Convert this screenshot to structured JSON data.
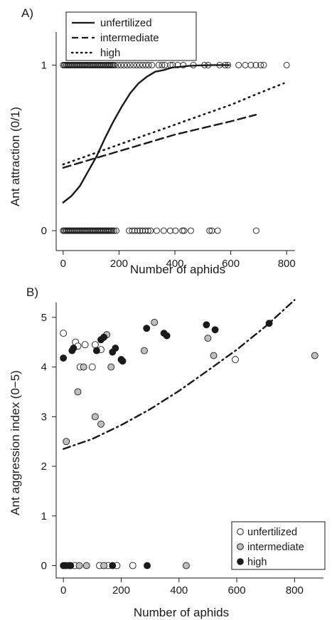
{
  "chart_data": [
    {
      "panel_label": "A)",
      "type": "scatter",
      "xlabel": "Number of aphids",
      "ylabel": "Ant attraction (0/1)",
      "xlim": [
        -25,
        830
      ],
      "ylim": [
        -0.12,
        1.35
      ],
      "x_ticks": [
        0,
        200,
        400,
        600,
        800
      ],
      "y_ticks": [
        0,
        1
      ],
      "legend": {
        "placement": "top-left",
        "entries": [
          {
            "label": "unfertilized",
            "style": "solid"
          },
          {
            "label": "intermediate",
            "style": "dashed"
          },
          {
            "label": "high",
            "style": "dotted"
          }
        ]
      },
      "points": {
        "y1_x": [
          0,
          4,
          8,
          12,
          16,
          20,
          24,
          28,
          32,
          36,
          40,
          44,
          48,
          52,
          56,
          60,
          64,
          68,
          72,
          76,
          80,
          84,
          88,
          92,
          96,
          100,
          104,
          108,
          112,
          116,
          120,
          124,
          128,
          132,
          136,
          140,
          144,
          148,
          152,
          156,
          160,
          164,
          168,
          172,
          176,
          180,
          185,
          196,
          207,
          218,
          229,
          240,
          252,
          263,
          274,
          285,
          296,
          306,
          318,
          342,
          354,
          364,
          384,
          392,
          410,
          430,
          466,
          506,
          519,
          560,
          580,
          590,
          628,
          652,
          672,
          690,
          707,
          718,
          800
        ],
        "y0_x": [
          0,
          4,
          8,
          12,
          16,
          20,
          24,
          28,
          32,
          36,
          40,
          44,
          48,
          52,
          56,
          60,
          64,
          68,
          72,
          76,
          80,
          84,
          88,
          92,
          96,
          100,
          104,
          108,
          112,
          116,
          120,
          124,
          128,
          132,
          136,
          140,
          144,
          148,
          152,
          156,
          160,
          164,
          168,
          172,
          176,
          182,
          190,
          236,
          247,
          256,
          266,
          275,
          284,
          294,
          304,
          313,
          335,
          360,
          383,
          402,
          427,
          433,
          457,
          524,
          532,
          553,
          691
        ]
      },
      "series": [
        {
          "name": "unfertilized",
          "style": "solid",
          "x": [
            0,
            30,
            60,
            90,
            120,
            150,
            180,
            210,
            240,
            270,
            300,
            330,
            360,
            390,
            420,
            450,
            480,
            510,
            540,
            570,
            595
          ],
          "y": [
            0.17,
            0.21,
            0.27,
            0.36,
            0.45,
            0.56,
            0.66,
            0.75,
            0.83,
            0.89,
            0.93,
            0.96,
            0.97,
            0.985,
            0.99,
            0.995,
            0.998,
            0.999,
            1.0,
            1.0,
            1.0
          ]
        },
        {
          "name": "intermediate",
          "style": "dashed",
          "x": [
            0,
            100,
            200,
            300,
            400,
            500,
            600,
            690
          ],
          "y": [
            0.38,
            0.43,
            0.48,
            0.53,
            0.58,
            0.62,
            0.66,
            0.7
          ]
        },
        {
          "name": "high",
          "style": "dotted",
          "x": [
            0,
            100,
            200,
            300,
            400,
            500,
            600,
            700,
            790
          ],
          "y": [
            0.4,
            0.46,
            0.52,
            0.58,
            0.64,
            0.7,
            0.76,
            0.83,
            0.89
          ]
        }
      ]
    },
    {
      "panel_label": "B)",
      "type": "scatter",
      "xlabel": "Number of aphids",
      "ylabel": "Ant aggression index (0−5)",
      "xlim": [
        -25,
        900
      ],
      "ylim": [
        -0.25,
        5.6
      ],
      "x_ticks": [
        0,
        200,
        400,
        600,
        800
      ],
      "y_ticks": [
        0,
        1,
        2,
        3,
        4,
        5
      ],
      "legend": {
        "placement": "bottom-right",
        "entries": [
          {
            "label": "unfertilized",
            "fill": "#ffffff"
          },
          {
            "label": "intermediate",
            "fill": "#bfbfbf"
          },
          {
            "label": "high",
            "fill": "#1a1a1a"
          }
        ]
      },
      "points": [
        {
          "group": "unfertilized",
          "x": 0,
          "y": 4.68
        },
        {
          "group": "unfertilized",
          "x": 42,
          "y": 4.5
        },
        {
          "group": "unfertilized",
          "x": 50,
          "y": 4.42
        },
        {
          "group": "unfertilized",
          "x": 75,
          "y": 4.45
        },
        {
          "group": "unfertilized",
          "x": 58,
          "y": 4.0
        },
        {
          "group": "unfertilized",
          "x": 100,
          "y": 4.0
        },
        {
          "group": "unfertilized",
          "x": 110,
          "y": 4.45
        },
        {
          "group": "unfertilized",
          "x": 130,
          "y": 4.35
        },
        {
          "group": "unfertilized",
          "x": 595,
          "y": 4.15
        },
        {
          "group": "intermediate",
          "x": 10,
          "y": 2.5
        },
        {
          "group": "intermediate",
          "x": 50,
          "y": 3.5
        },
        {
          "group": "intermediate",
          "x": 70,
          "y": 4.0
        },
        {
          "group": "intermediate",
          "x": 110,
          "y": 3.0
        },
        {
          "group": "intermediate",
          "x": 130,
          "y": 2.85
        },
        {
          "group": "intermediate",
          "x": 150,
          "y": 4.65
        },
        {
          "group": "intermediate",
          "x": 165,
          "y": 4.0
        },
        {
          "group": "intermediate",
          "x": 280,
          "y": 4.33
        },
        {
          "group": "intermediate",
          "x": 315,
          "y": 4.9
        },
        {
          "group": "intermediate",
          "x": 500,
          "y": 4.58
        },
        {
          "group": "intermediate",
          "x": 520,
          "y": 4.23
        },
        {
          "group": "intermediate",
          "x": 870,
          "y": 4.23
        },
        {
          "group": "high",
          "x": 0,
          "y": 4.18
        },
        {
          "group": "high",
          "x": 30,
          "y": 4.33
        },
        {
          "group": "high",
          "x": 35,
          "y": 4.38
        },
        {
          "group": "high",
          "x": 115,
          "y": 4.33
        },
        {
          "group": "high",
          "x": 130,
          "y": 4.55
        },
        {
          "group": "high",
          "x": 140,
          "y": 4.6
        },
        {
          "group": "high",
          "x": 170,
          "y": 4.3
        },
        {
          "group": "high",
          "x": 180,
          "y": 4.38
        },
        {
          "group": "high",
          "x": 200,
          "y": 4.15
        },
        {
          "group": "high",
          "x": 205,
          "y": 4.12
        },
        {
          "group": "high",
          "x": 288,
          "y": 4.78
        },
        {
          "group": "high",
          "x": 348,
          "y": 4.68
        },
        {
          "group": "high",
          "x": 358,
          "y": 4.63
        },
        {
          "group": "high",
          "x": 495,
          "y": 4.85
        },
        {
          "group": "high",
          "x": 525,
          "y": 4.75
        },
        {
          "group": "high",
          "x": 712,
          "y": 4.88
        },
        {
          "group": "unfertilized",
          "x": 10,
          "y": 0
        },
        {
          "group": "unfertilized",
          "x": 40,
          "y": 0
        },
        {
          "group": "unfertilized",
          "x": 125,
          "y": 0
        },
        {
          "group": "unfertilized",
          "x": 155,
          "y": 0
        },
        {
          "group": "unfertilized",
          "x": 185,
          "y": 0
        },
        {
          "group": "unfertilized",
          "x": 240,
          "y": 0
        },
        {
          "group": "intermediate",
          "x": 55,
          "y": 0
        },
        {
          "group": "intermediate",
          "x": 80,
          "y": 0
        },
        {
          "group": "intermediate",
          "x": 140,
          "y": 0
        },
        {
          "group": "intermediate",
          "x": 425,
          "y": 0
        },
        {
          "group": "high",
          "x": 0,
          "y": 0
        },
        {
          "group": "high",
          "x": 5,
          "y": 0
        },
        {
          "group": "high",
          "x": 20,
          "y": 0
        },
        {
          "group": "high",
          "x": 25,
          "y": 0
        },
        {
          "group": "high",
          "x": 170,
          "y": 0
        },
        {
          "group": "high",
          "x": 290,
          "y": 0
        }
      ],
      "series": [
        {
          "name": "fitted curve",
          "style": "dash-dot",
          "x": [
            0,
            100,
            200,
            300,
            400,
            500,
            600,
            700,
            800
          ],
          "y": [
            2.35,
            2.55,
            2.83,
            3.15,
            3.52,
            3.93,
            4.35,
            4.82,
            5.35
          ]
        }
      ]
    }
  ]
}
